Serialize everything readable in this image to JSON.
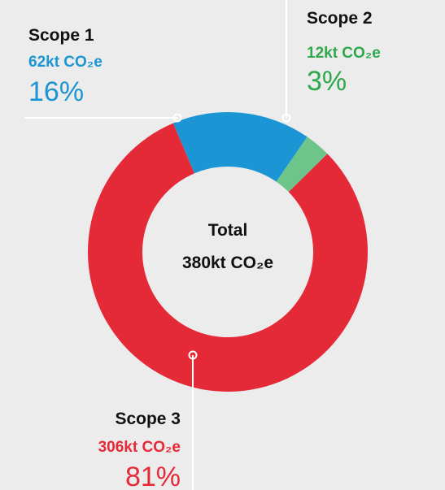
{
  "chart_data": {
    "type": "donut",
    "categories": [
      "Scope 1",
      "Scope 2",
      "Scope 3"
    ],
    "values": [
      16,
      3,
      81
    ],
    "value_labels": [
      "16%",
      "3%",
      "81%"
    ],
    "amount_labels": [
      "62kt CO₂e",
      "12kt CO₂e",
      "306kt CO₂e"
    ],
    "colors": [
      "#1b95d3",
      "#6dc58a",
      "#e52a37"
    ],
    "label_colors": [
      "#1b95d3",
      "#2ea84a",
      "#e52a37"
    ],
    "center_title": "Total",
    "center_label": "380kt CO₂e"
  }
}
